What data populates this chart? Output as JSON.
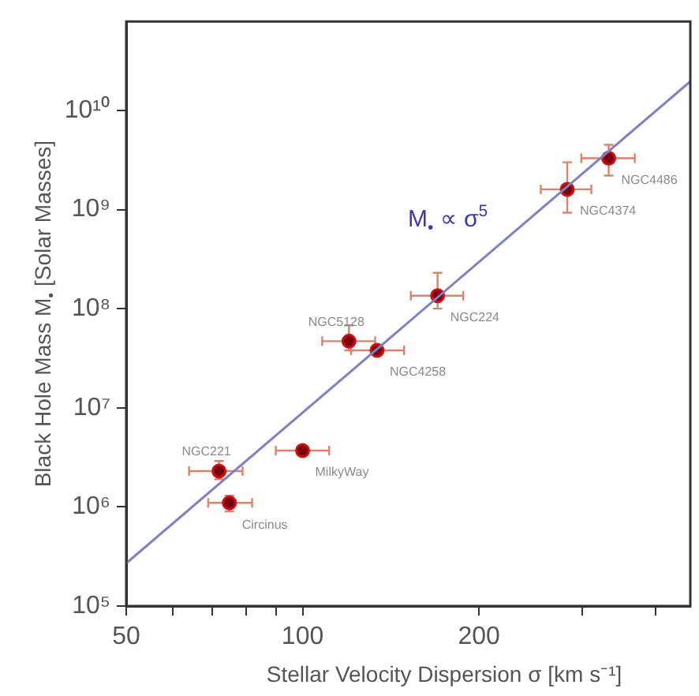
{
  "chart_data": {
    "type": "scatter",
    "xlabel": "Stellar Velocity Dispersion σ [km s⁻¹]",
    "ylabel": "Black Hole Mass M$_{•}$ [Solar Masses]",
    "log": "xy",
    "grid": false,
    "legend": false,
    "marker": "circle",
    "xlim": [
      50,
      459
    ],
    "ylim": [
      100000,
      79000000000
    ],
    "xticks": [
      50,
      {
        "value": 60,
        "label": null
      },
      {
        "value": 70,
        "label": null
      },
      {
        "value": 80,
        "label": null
      },
      {
        "value": 90,
        "label": null
      },
      100,
      200,
      {
        "value": 300,
        "label": null
      },
      {
        "value": 400,
        "label": null
      }
    ],
    "yticks": [
      {
        "value": 100000,
        "label": "10⁵"
      },
      {
        "value": 1000000,
        "label": "10⁶"
      },
      {
        "value": 10000000,
        "label": "10⁷"
      },
      {
        "value": 100000000,
        "label": "10⁸"
      },
      {
        "value": 1000000000,
        "label": "10⁹"
      },
      {
        "value": 10000000000,
        "label": "10¹⁰"
      }
    ],
    "series": [
      {
        "type": "line",
        "color": "#8080c0",
        "x": [
          50,
          459
        ],
        "values": [
          270000,
          19600000000
        ],
        "line_style": "solid",
        "marker": "none"
      },
      {
        "color": "#cc1111",
        "x": [
          72,
          75,
          100,
          120,
          134,
          170,
          283,
          333
        ],
        "values": [
          2300000,
          1100000,
          3700000,
          47000000,
          38000000,
          135000000,
          1600000000,
          3300000000
        ],
        "xerrors": [
          [
            64,
            79
          ],
          [
            69,
            82
          ],
          [
            90,
            111
          ],
          [
            108,
            133
          ],
          [
            121,
            149
          ],
          [
            153,
            188
          ],
          [
            255,
            311
          ],
          [
            299,
            369
          ]
        ],
        "errors": [
          [
            1900000,
            2900000
          ],
          [
            900000,
            1300000
          ],
          null,
          [
            38000000,
            68000000
          ],
          null,
          [
            100000000,
            230000000
          ],
          [
            930000000,
            3000000000
          ],
          [
            2200000000,
            4500000000
          ]
        ]
      }
    ],
    "annotations": [
      "M$_{•}$ ∝ σ$^{5}$",
      {
        "text": "NGC221",
        "x": 72,
        "y": 2300000
      },
      {
        "text": "Circinus",
        "x": 75,
        "y": 1100000
      },
      {
        "text": "MilkyWay",
        "x": 100,
        "y": 3700000
      },
      {
        "text": "NGC5128",
        "x": 120,
        "y": 47000000
      },
      {
        "text": "NGC4258",
        "x": 134,
        "y": 38000000
      },
      {
        "text": "NGC224",
        "x": 170,
        "y": 135000000
      },
      {
        "text": "NGC4374",
        "x": 283,
        "y": 1600000000
      },
      {
        "text": "NGC4486",
        "x": 333,
        "y": 3300000000
      }
    ]
  }
}
